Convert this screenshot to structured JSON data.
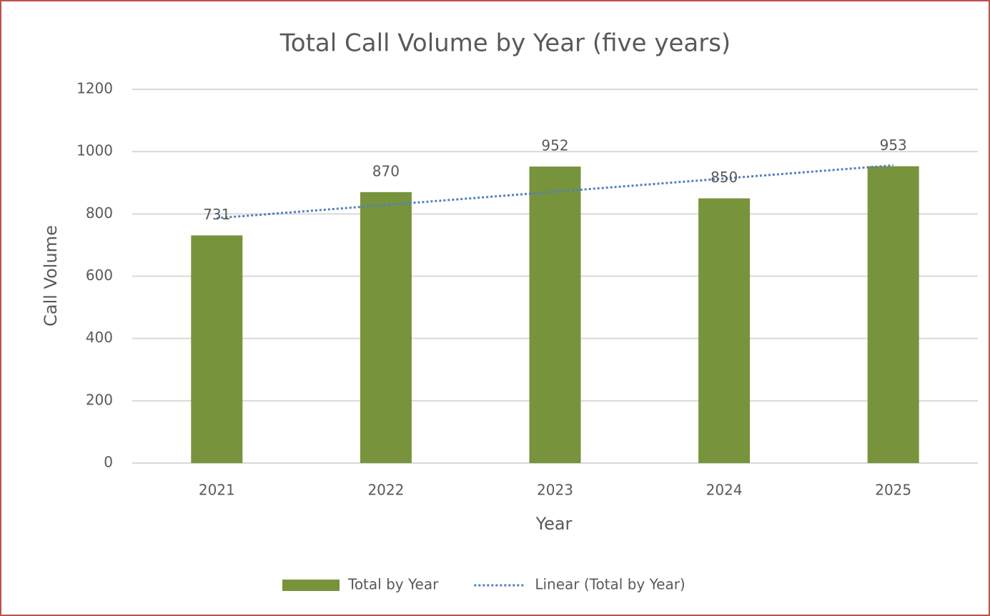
{
  "chart_data": {
    "type": "bar",
    "title": "Total Call Volume by Year (five years)",
    "x_label": "Year",
    "y_label": "Call Volume",
    "categories": [
      "2021",
      "2022",
      "2023",
      "2024",
      "2025"
    ],
    "series": [
      {
        "name": "Total by Year",
        "type": "bar",
        "color": "#77933c",
        "values": [
          731,
          870,
          952,
          850,
          953
        ]
      },
      {
        "name": "Linear (Total by Year)",
        "type": "line",
        "color": "#4f81bd",
        "dotted": true,
        "values": [
          786.4,
          828.8,
          871.2,
          913.6,
          956
        ]
      }
    ],
    "data_labels_series": 0,
    "ylim": [
      0,
      1200
    ],
    "yticks": [
      0,
      200,
      400,
      600,
      800,
      1000,
      1200
    ],
    "grid": true,
    "legend": "bottom"
  }
}
